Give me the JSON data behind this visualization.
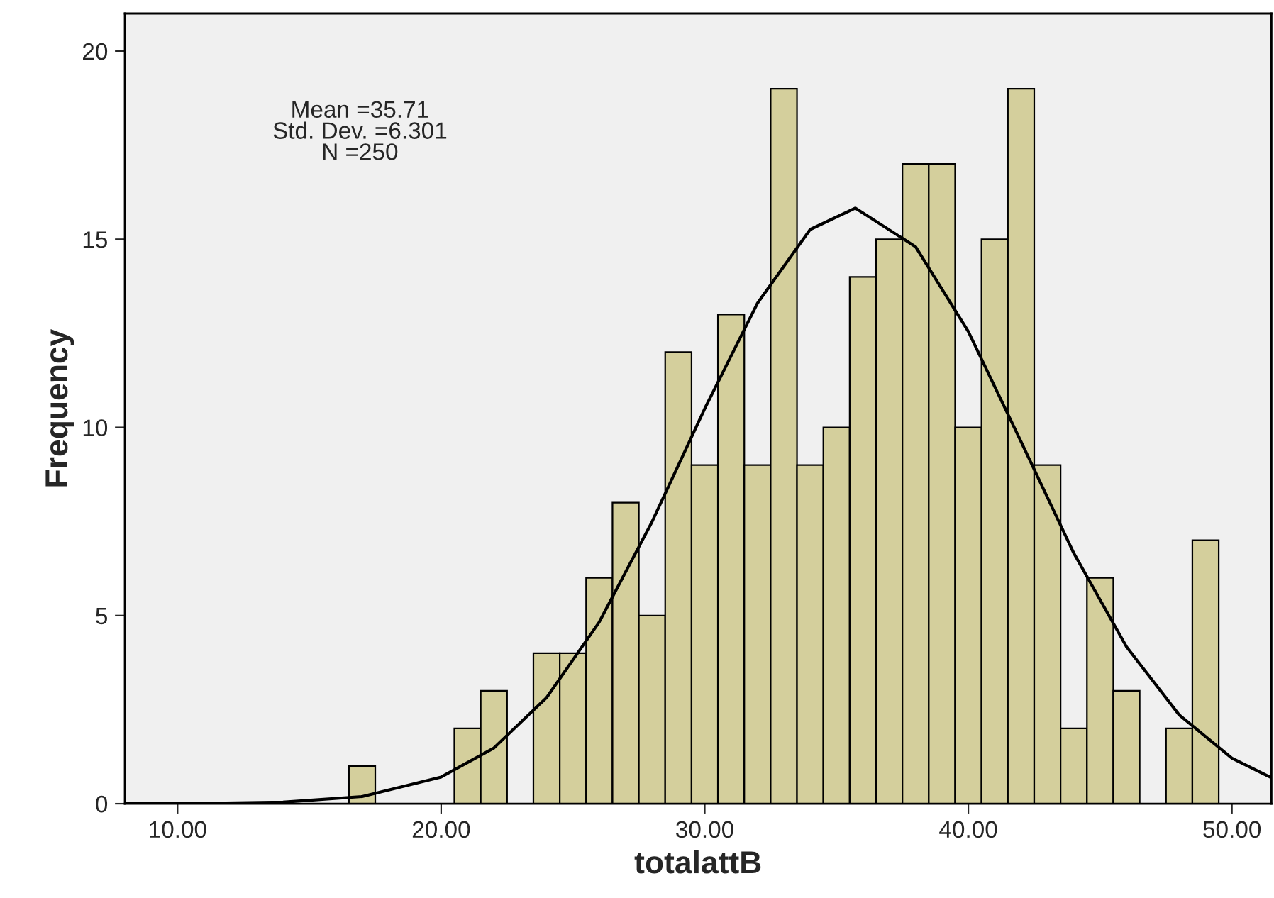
{
  "chart_data": {
    "type": "histogram",
    "xlabel": "totalattB",
    "ylabel": "Frequency",
    "bins": [
      16.5,
      17.5,
      18.5,
      19.5,
      20.5,
      21.5,
      22.5,
      23.5,
      24.5,
      25.5,
      26.5,
      27.5,
      28.5,
      29.5,
      30.5,
      31.5,
      32.5,
      33.5,
      34.5,
      35.5,
      36.5,
      37.5,
      38.5,
      39.5,
      40.5,
      41.5,
      42.5,
      43.5,
      44.5,
      45.5,
      46.5,
      47.5,
      48.5,
      49.5
    ],
    "values": [
      1,
      0,
      0,
      0,
      2,
      3,
      0,
      4,
      4,
      6,
      8,
      5,
      12,
      9,
      13,
      9,
      19,
      9,
      10,
      14,
      15,
      17,
      17,
      10,
      15,
      19,
      9,
      2,
      6,
      3,
      0,
      2,
      7
    ],
    "color": "#d4cf9c",
    "series": [
      {
        "type": "line",
        "color": "#000000",
        "x": [
          8,
          10,
          14,
          17,
          20,
          22,
          24,
          26,
          28,
          30,
          32,
          34,
          35.71,
          38,
          40,
          42,
          44,
          46,
          48,
          50,
          51.5
        ],
        "values": [
          0.0,
          0.0,
          0.04,
          0.19,
          0.71,
          1.48,
          2.82,
          4.83,
          7.49,
          10.5,
          13.3,
          15.26,
          15.83,
          14.8,
          12.55,
          9.62,
          6.66,
          4.17,
          2.36,
          1.21,
          0.69
        ]
      }
    ],
    "xlim": [
      8,
      51.5
    ],
    "xticks": [
      {
        "value": 10,
        "label": "10.00"
      },
      {
        "value": 20,
        "label": "20.00"
      },
      {
        "value": 30,
        "label": "30.00"
      },
      {
        "value": 40,
        "label": "40.00"
      },
      {
        "value": 50,
        "label": "50.00"
      }
    ],
    "ylim": [
      0,
      21
    ],
    "yticks": [
      0,
      5,
      10,
      15,
      20
    ],
    "grid": false,
    "legend": false,
    "annotations": [
      "Mean =35.71\nStd. Dev. =6.301\nN =250"
    ]
  }
}
